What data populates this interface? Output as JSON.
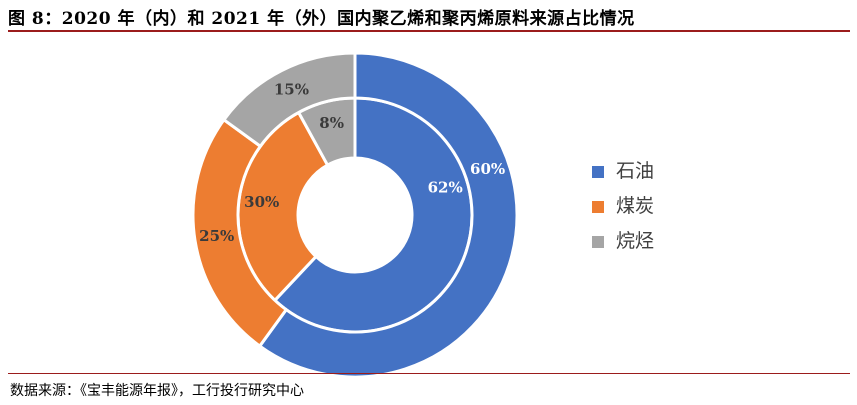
{
  "title": "图 8：2020 年（内）和 2021 年（外）国内聚乙烯和聚丙烯原料来源占比情况",
  "source": "数据来源：《宝丰能源年报》，工行投行研究中心",
  "chart_data": {
    "type": "pie",
    "variant": "nested-donut",
    "categories": [
      "石油",
      "煤炭",
      "烷烃"
    ],
    "colors": [
      "#4472C4",
      "#ED7D31",
      "#A5A5A5"
    ],
    "series": [
      {
        "name": "2020",
        "ring": "inner",
        "values": [
          62,
          30,
          8
        ],
        "labels": [
          "62%",
          "30%",
          "8%"
        ]
      },
      {
        "name": "2021",
        "ring": "outer",
        "values": [
          60,
          25,
          15
        ],
        "labels": [
          "60%",
          "25%",
          "15%"
        ]
      }
    ],
    "legend_position": "right"
  }
}
